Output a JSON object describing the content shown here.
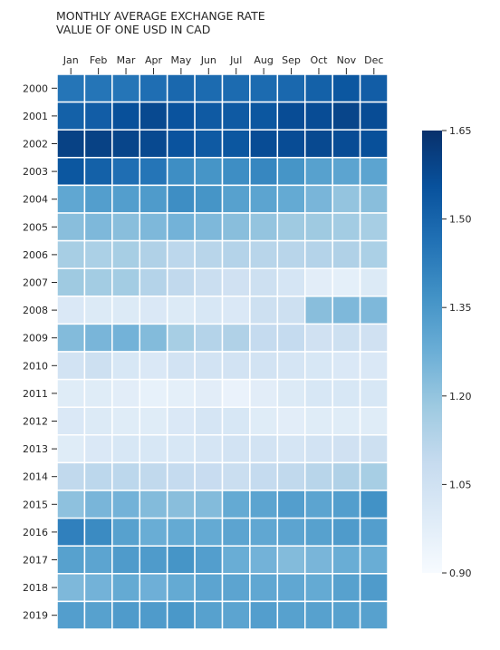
{
  "chart_data": {
    "type": "heatmap",
    "title": [
      "MONTHLY AVERAGE EXCHANGE RATE",
      "VALUE OF ONE USD IN CAD"
    ],
    "columns": [
      "Jan",
      "Feb",
      "Mar",
      "Apr",
      "May",
      "Jun",
      "Jul",
      "Aug",
      "Sep",
      "Oct",
      "Nov",
      "Dec"
    ],
    "rows": [
      "2000",
      "2001",
      "2002",
      "2003",
      "2004",
      "2005",
      "2006",
      "2007",
      "2008",
      "2009",
      "2010",
      "2011",
      "2012",
      "2013",
      "2014",
      "2015",
      "2016",
      "2017",
      "2018",
      "2019"
    ],
    "values": [
      [
        1.45,
        1.45,
        1.45,
        1.47,
        1.49,
        1.48,
        1.48,
        1.48,
        1.49,
        1.51,
        1.54,
        1.52
      ],
      [
        1.51,
        1.52,
        1.56,
        1.58,
        1.55,
        1.53,
        1.53,
        1.54,
        1.57,
        1.57,
        1.59,
        1.57
      ],
      [
        1.6,
        1.6,
        1.59,
        1.58,
        1.55,
        1.53,
        1.54,
        1.57,
        1.57,
        1.58,
        1.57,
        1.56
      ],
      [
        1.54,
        1.51,
        1.47,
        1.45,
        1.38,
        1.36,
        1.38,
        1.4,
        1.36,
        1.32,
        1.31,
        1.31
      ],
      [
        1.3,
        1.33,
        1.33,
        1.34,
        1.38,
        1.36,
        1.32,
        1.31,
        1.29,
        1.25,
        1.2,
        1.22
      ],
      [
        1.22,
        1.24,
        1.22,
        1.24,
        1.26,
        1.24,
        1.22,
        1.2,
        1.18,
        1.18,
        1.17,
        1.16
      ],
      [
        1.16,
        1.15,
        1.16,
        1.14,
        1.11,
        1.12,
        1.13,
        1.12,
        1.12,
        1.13,
        1.14,
        1.15
      ],
      [
        1.18,
        1.17,
        1.17,
        1.13,
        1.1,
        1.07,
        1.05,
        1.06,
        1.03,
        0.98,
        0.97,
        1.0
      ],
      [
        1.01,
        1.0,
        1.0,
        1.01,
        1.0,
        1.02,
        1.01,
        1.06,
        1.06,
        1.22,
        1.24,
        1.24
      ],
      [
        1.23,
        1.25,
        1.26,
        1.23,
        1.16,
        1.13,
        1.14,
        1.09,
        1.09,
        1.05,
        1.06,
        1.05
      ],
      [
        1.04,
        1.06,
        1.02,
        1.01,
        1.04,
        1.04,
        1.04,
        1.04,
        1.03,
        1.02,
        1.01,
        1.01
      ],
      [
        0.99,
        0.99,
        0.98,
        0.96,
        0.97,
        0.98,
        0.95,
        0.98,
        1.0,
        1.02,
        1.02,
        1.02
      ],
      [
        1.01,
        1.0,
        0.99,
        0.99,
        1.01,
        1.03,
        1.02,
        0.99,
        0.98,
        0.99,
        0.99,
        0.99
      ],
      [
        0.99,
        1.01,
        1.02,
        1.02,
        1.02,
        1.03,
        1.04,
        1.04,
        1.03,
        1.04,
        1.05,
        1.06
      ],
      [
        1.1,
        1.11,
        1.11,
        1.1,
        1.09,
        1.08,
        1.07,
        1.09,
        1.1,
        1.12,
        1.14,
        1.16
      ],
      [
        1.21,
        1.25,
        1.26,
        1.23,
        1.22,
        1.23,
        1.29,
        1.31,
        1.33,
        1.31,
        1.33,
        1.37
      ],
      [
        1.42,
        1.39,
        1.32,
        1.28,
        1.29,
        1.29,
        1.31,
        1.3,
        1.31,
        1.32,
        1.34,
        1.33
      ],
      [
        1.32,
        1.31,
        1.34,
        1.34,
        1.36,
        1.33,
        1.28,
        1.26,
        1.23,
        1.25,
        1.28,
        1.28
      ],
      [
        1.24,
        1.26,
        1.29,
        1.27,
        1.29,
        1.31,
        1.31,
        1.3,
        1.3,
        1.29,
        1.32,
        1.34
      ],
      [
        1.33,
        1.32,
        1.34,
        1.34,
        1.35,
        1.32,
        1.31,
        1.33,
        1.32,
        1.32,
        1.32,
        1.32
      ]
    ],
    "colorbar": {
      "min": 0.9,
      "max": 1.65,
      "ticks": [
        "0.90",
        "1.05",
        "1.20",
        "1.35",
        "1.50",
        "1.65"
      ]
    },
    "colors": {
      "cell_border": "#ffffff",
      "ramp": [
        "#f7fbff",
        "#deebf7",
        "#c6dbef",
        "#9ecae1",
        "#6baed6",
        "#4292c6",
        "#2171b5",
        "#08519c",
        "#08306b"
      ]
    }
  }
}
